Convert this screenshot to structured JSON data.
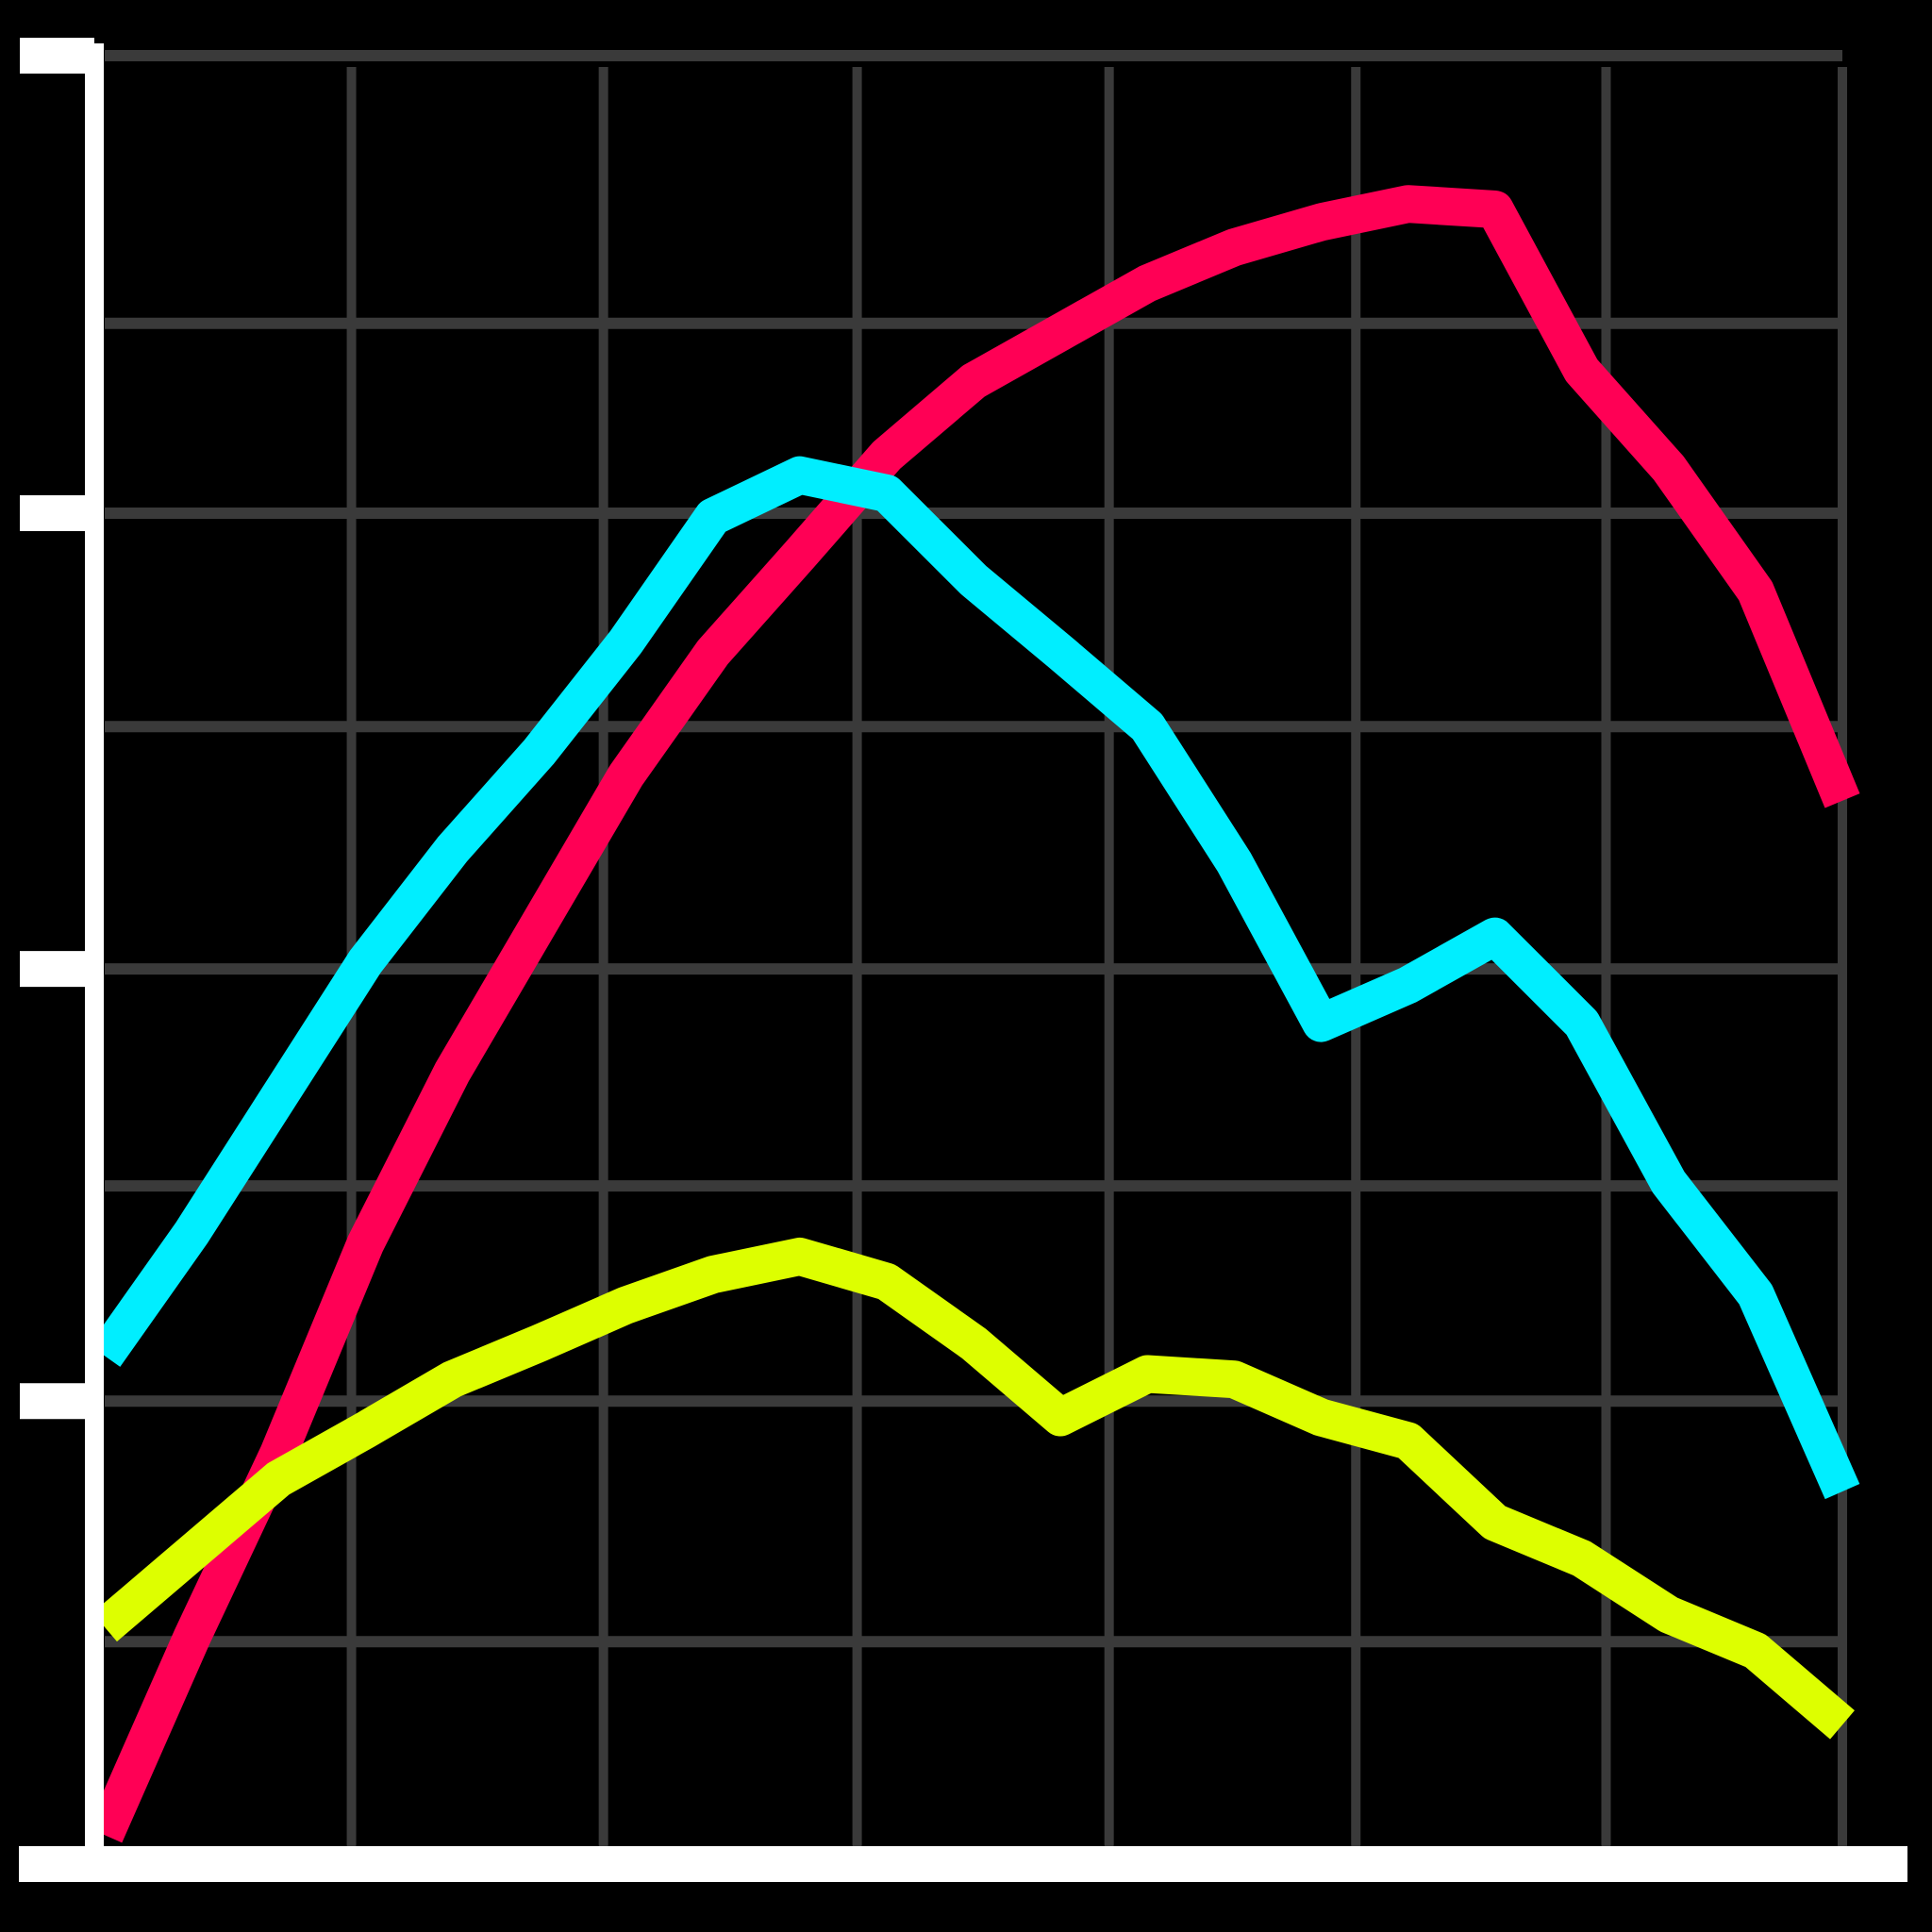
{
  "chart_data": {
    "type": "line",
    "x": [
      0,
      5,
      10,
      15,
      20,
      25,
      30,
      35,
      40,
      45,
      50,
      55,
      60,
      65,
      70,
      75,
      80,
      85,
      90,
      95,
      100
    ],
    "series": [
      {
        "color": "#ff0055",
        "values": [
          1.6,
          12.5,
          22.7,
          34.3,
          43.8,
          52,
          60.2,
          67,
          72.4,
          77.9,
          82,
          84.7,
          87.4,
          89.4,
          90.8,
          91.8,
          91.5,
          82.6,
          77.2,
          70.4,
          58.8
        ]
      },
      {
        "color": "#00eeff",
        "values": [
          28.1,
          34.9,
          42.4,
          49.9,
          56.1,
          61.5,
          67.6,
          74.5,
          76.8,
          75.8,
          71,
          67,
          62.9,
          55.4,
          46.5,
          48.6,
          51.3,
          46.5,
          37.7,
          31.5,
          20.6
        ]
      },
      {
        "color": "#ddff00",
        "values": [
          13.1,
          17.2,
          21.3,
          24,
          26.8,
          28.8,
          30.9,
          32.6,
          33.6,
          32.2,
          28.8,
          24.7,
          27.1,
          26.8,
          24.7,
          23.4,
          18.9,
          16.9,
          13.8,
          11.8,
          7.7
        ]
      }
    ],
    "xlim": [
      0,
      100
    ],
    "ylim": [
      0,
      100
    ],
    "xticks": [
      14.2,
      28.7,
      43.3,
      57.8,
      72,
      86.4,
      100
    ],
    "yticks": [
      12.3,
      25.6,
      37.5,
      49.5,
      62.9,
      74.7,
      85.2,
      100
    ],
    "yaxis_ticks": [
      25.6,
      49.5,
      74.7,
      100
    ],
    "grid": true
  }
}
